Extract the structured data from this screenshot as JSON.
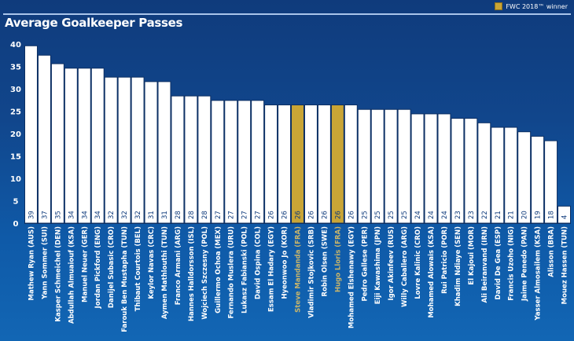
{
  "chart_data": {
    "type": "bar",
    "title": "Average Goalkeeper Passes",
    "xlabel": "",
    "ylabel": "",
    "ylim": [
      0,
      40
    ],
    "yticks": [
      0,
      5,
      10,
      15,
      20,
      25,
      30,
      35,
      40
    ],
    "grid": false,
    "legend": {
      "position": "top-right",
      "entries": [
        {
          "label": "FWC 2018™ winner",
          "color": "#c9a536"
        }
      ]
    },
    "colors": {
      "default_bar": "#ffffff",
      "highlight_bar": "#c9a536",
      "highlight_label": "#c9b56a",
      "default_label": "#ffffff",
      "value_label": "#0f3b7c"
    },
    "categories": [
      "Mathew Ryan (AUS)",
      "Yann Sommer (SUI)",
      "Kasper Schmeichel (DEN)",
      "Abdullah Almuaiouf (KSA)",
      "Manuel Neuer (GER)",
      "Jordan Pickford (ENG)",
      "Danijel Subasic (CRO)",
      "Farouk Ben Mustapha (TUN)",
      "Thibaut Courtois (BEL)",
      "Keylor Navas (CRC)",
      "Aymen Mathlouthi (TUN)",
      "Franco Armani (ARG)",
      "Hannes Halldorsson (ISL)",
      "Wojciech Szczesny (POL)",
      "Guillermo Ochoa (MEX)",
      "Fernando Muslera (URU)",
      "Lukasz Fabianski (POL)",
      "David Ospina (COL)",
      "Essam El Hadary (EGY)",
      "Hyeonwoo Jo (KOR)",
      "Steve Mandanda (FRA)",
      "Vladimir Stojkovic (SRB)",
      "Robin Olsen (SWE)",
      "Hugo Lloris (FRA)",
      "Mohamed Elshenawy (EGY)",
      "Pedro Gallese (PER)",
      "Eiji Kawashima (JPN)",
      "Igor Akinfeev (RUS)",
      "Willy Caballero (ARG)",
      "Lovre Kalinic (CRO)",
      "Mohamed Alowais (KSA)",
      "Rui Patricio (POR)",
      "Khadim Ndiaye (SEN)",
      "El Kajoui (MOR)",
      "Ali Beiranvand (IRN)",
      "David De Gea (ESP)",
      "Francis Uzoho (NIG)",
      "Jaime Penedo (PAN)",
      "Yasser Almosailem (KSA)",
      "Alisson (BRA)",
      "Mouez Hassen (TUN)"
    ],
    "values": [
      39,
      37,
      35,
      34,
      34,
      34,
      32,
      32,
      32,
      31,
      31,
      28,
      28,
      28,
      27,
      27,
      27,
      27,
      26,
      26,
      26,
      26,
      26,
      26,
      26,
      25,
      25,
      25,
      25,
      24,
      24,
      24,
      23,
      23,
      22,
      21,
      21,
      20,
      19,
      18,
      4
    ],
    "display_heights": [
      39.6,
      37.5,
      35.6,
      34.6,
      34.6,
      34.6,
      32.6,
      32.6,
      32.6,
      31.6,
      31.6,
      28.4,
      28.4,
      28.4,
      27.4,
      27.4,
      27.4,
      27.4,
      26.4,
      26.4,
      26.4,
      26.4,
      26.4,
      26.4,
      26.4,
      25.4,
      25.4,
      25.4,
      25.4,
      24.4,
      24.4,
      24.4,
      23.4,
      23.4,
      22.4,
      21.4,
      21.4,
      20.4,
      19.4,
      18.4,
      3.8
    ],
    "highlighted": [
      "Steve Mandanda (FRA)",
      "Hugo Lloris (FRA)"
    ]
  }
}
